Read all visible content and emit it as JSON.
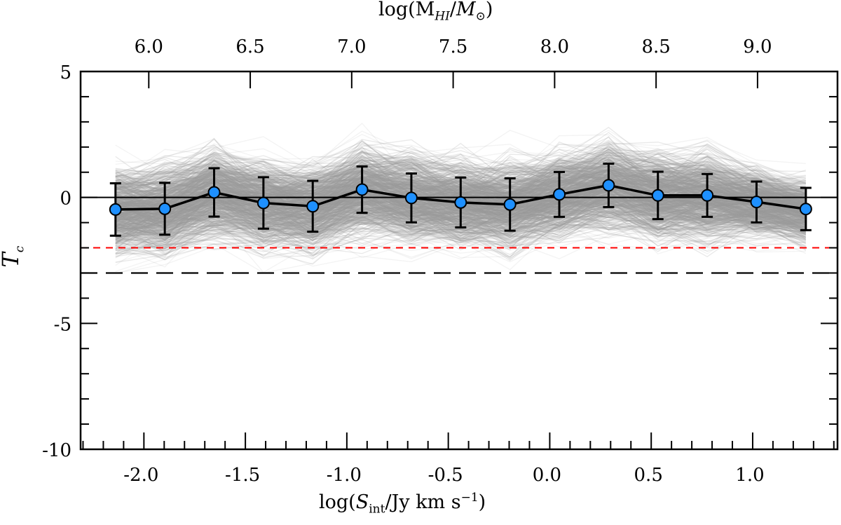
{
  "chart_data": {
    "type": "line",
    "title": "",
    "xlabel": {
      "prefix": "log(",
      "var": "S",
      "sub": "int",
      "unit": "/Jy km s",
      "sup": "−1",
      "suffix": ")"
    },
    "x2label": {
      "prefix": "log(M",
      "sub": "HI",
      "mid": "/",
      "var": "M",
      "sub2": "⊙",
      "suffix": ")"
    },
    "ylabel": {
      "var": "T",
      "sub": "c"
    },
    "xlim": [
      -2.312,
      1.418
    ],
    "ylim": [
      -10,
      5
    ],
    "x2_offset": 7.976,
    "xticks": [
      "-2.0",
      "-1.5",
      "-1.0",
      "-0.5",
      "0.0",
      "0.5",
      "1.0"
    ],
    "xtick_values": [
      -2.0,
      -1.5,
      -1.0,
      -0.5,
      0.0,
      0.5,
      1.0
    ],
    "x2ticks": [
      "6.0",
      "6.5",
      "7.0",
      "7.5",
      "8.0",
      "8.5",
      "9.0"
    ],
    "x2tick_values": [
      6.0,
      6.5,
      7.0,
      7.5,
      8.0,
      8.5,
      9.0
    ],
    "yticks": [
      "5",
      "0",
      "-5",
      "-10"
    ],
    "ytick_values": [
      5,
      0,
      -5,
      -10
    ],
    "series": [
      {
        "name": "mean Tc",
        "color": "#1e90ff",
        "x": [
          -2.14,
          -1.897,
          -1.654,
          -1.411,
          -1.168,
          -0.925,
          -0.682,
          -0.439,
          -0.196,
          0.047,
          0.29,
          0.533,
          0.776,
          1.019,
          1.262
        ],
        "y": [
          -0.48,
          -0.45,
          0.2,
          -0.22,
          -0.35,
          0.31,
          -0.02,
          -0.2,
          -0.28,
          0.12,
          0.48,
          0.08,
          0.08,
          -0.18,
          -0.46
        ],
        "yerr": [
          1.04,
          1.03,
          0.96,
          1.02,
          1.01,
          0.92,
          0.97,
          0.99,
          1.04,
          0.89,
          0.86,
          0.94,
          0.85,
          0.81,
          0.84
        ]
      }
    ],
    "hlines": [
      {
        "y": 0,
        "color": "#000000",
        "style": "solid"
      },
      {
        "y": -2,
        "color": "#ff0000",
        "style": "dashed"
      },
      {
        "y": -3,
        "color": "#000000",
        "style": "dashed"
      }
    ],
    "realizations": {
      "count": 700,
      "color": "#999999"
    },
    "grid": false,
    "legend": "none"
  }
}
